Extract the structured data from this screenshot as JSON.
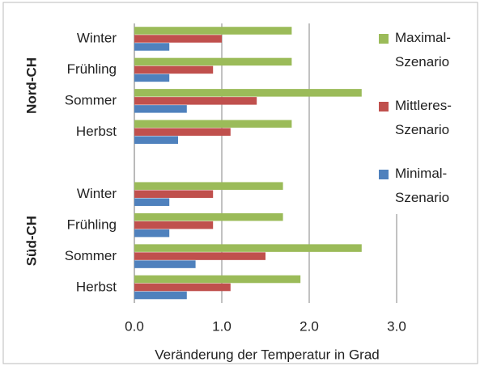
{
  "chart_data": {
    "type": "bar",
    "orientation": "horizontal",
    "x_label": "Veränderung der Temperatur in Grad",
    "groups": [
      "Nord-CH",
      "Süd-CH"
    ],
    "categories": [
      "Winter",
      "Frühling",
      "Sommer",
      "Herbst",
      null,
      "Winter",
      "Frühling",
      "Sommer",
      "Herbst"
    ],
    "series": [
      {
        "name": "Maximal-Szenario",
        "color": "#9bbb59",
        "values": [
          1.8,
          1.8,
          2.6,
          1.8,
          null,
          1.7,
          1.7,
          2.6,
          1.9
        ]
      },
      {
        "name": "Mittleres-Szenario",
        "color": "#c0504d",
        "values": [
          1.0,
          0.9,
          1.4,
          1.1,
          null,
          0.9,
          0.9,
          1.5,
          1.1
        ]
      },
      {
        "name": "Minimal-Szenario",
        "color": "#4f81bd",
        "values": [
          0.4,
          0.4,
          0.6,
          0.5,
          null,
          0.4,
          0.4,
          0.7,
          0.6
        ]
      }
    ],
    "xlim": [
      0,
      3
    ],
    "xticks": [
      {
        "value": 0,
        "label": "0.0"
      },
      {
        "value": 1,
        "label": "1.0"
      },
      {
        "value": 2,
        "label": "2.0"
      },
      {
        "value": 3,
        "label": "3.0"
      }
    ],
    "grid": true,
    "legend": "right"
  }
}
